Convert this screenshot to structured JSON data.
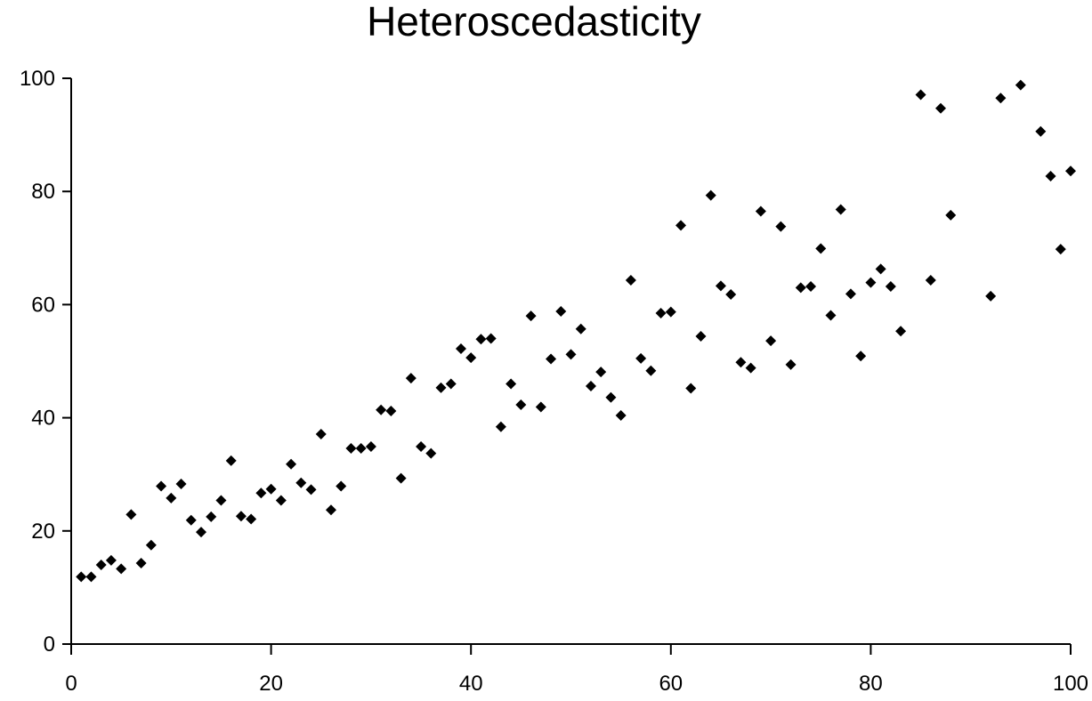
{
  "chart_data": {
    "type": "scatter",
    "title": "Heteroscedasticity",
    "xlabel": "",
    "ylabel": "",
    "xlim": [
      0,
      100
    ],
    "ylim": [
      0,
      100
    ],
    "x_ticks": [
      0,
      20,
      40,
      60,
      80,
      100
    ],
    "y_ticks": [
      0,
      20,
      40,
      60,
      80,
      100
    ],
    "x_tick_labels": [
      "0",
      "20",
      "40",
      "60",
      "80",
      "100"
    ],
    "y_tick_labels": [
      "0",
      "20",
      "40",
      "60",
      "80",
      "100"
    ],
    "grid": false,
    "legend": "none",
    "marker": "diamond",
    "colors": {
      "marker": "#000000",
      "axis": "#000000",
      "text": "#000000"
    },
    "points": [
      [
        1,
        11.9
      ],
      [
        2,
        11.9
      ],
      [
        3,
        14.0
      ],
      [
        4,
        14.8
      ],
      [
        5,
        13.3
      ],
      [
        6,
        22.9
      ],
      [
        7,
        14.3
      ],
      [
        8,
        17.5
      ],
      [
        9,
        27.9
      ],
      [
        10,
        25.8
      ],
      [
        11,
        28.3
      ],
      [
        12,
        21.9
      ],
      [
        13,
        19.8
      ],
      [
        14,
        22.5
      ],
      [
        15,
        25.4
      ],
      [
        16,
        32.4
      ],
      [
        17,
        22.6
      ],
      [
        18,
        22.1
      ],
      [
        19,
        26.7
      ],
      [
        20,
        27.4
      ],
      [
        21,
        25.4
      ],
      [
        22,
        31.8
      ],
      [
        23,
        28.5
      ],
      [
        24,
        27.3
      ],
      [
        25,
        37.1
      ],
      [
        26,
        23.7
      ],
      [
        27,
        27.9
      ],
      [
        28,
        34.6
      ],
      [
        29,
        34.6
      ],
      [
        30,
        34.9
      ],
      [
        31,
        41.4
      ],
      [
        32,
        41.2
      ],
      [
        33,
        29.3
      ],
      [
        34,
        47.0
      ],
      [
        35,
        34.9
      ],
      [
        36,
        33.7
      ],
      [
        37,
        45.3
      ],
      [
        38,
        46.0
      ],
      [
        39,
        52.2
      ],
      [
        40,
        50.6
      ],
      [
        41,
        53.9
      ],
      [
        42,
        54.0
      ],
      [
        43,
        38.4
      ],
      [
        44,
        46.0
      ],
      [
        45,
        42.3
      ],
      [
        46,
        58.0
      ],
      [
        47,
        41.9
      ],
      [
        48,
        50.4
      ],
      [
        49,
        58.8
      ],
      [
        50,
        51.2
      ],
      [
        51,
        55.7
      ],
      [
        52,
        45.6
      ],
      [
        53,
        48.1
      ],
      [
        54,
        43.6
      ],
      [
        55,
        40.4
      ],
      [
        56,
        64.3
      ],
      [
        57,
        50.5
      ],
      [
        58,
        48.3
      ],
      [
        59,
        58.5
      ],
      [
        60,
        58.7
      ],
      [
        61,
        74.0
      ],
      [
        62,
        45.2
      ],
      [
        63,
        54.4
      ],
      [
        64,
        79.3
      ],
      [
        65,
        63.3
      ],
      [
        66,
        61.8
      ],
      [
        67,
        49.8
      ],
      [
        68,
        48.8
      ],
      [
        69,
        76.5
      ],
      [
        70,
        53.6
      ],
      [
        71,
        73.8
      ],
      [
        72,
        49.4
      ],
      [
        73,
        63.0
      ],
      [
        74,
        63.2
      ],
      [
        75,
        69.9
      ],
      [
        76,
        58.1
      ],
      [
        77,
        76.8
      ],
      [
        78,
        61.9
      ],
      [
        79,
        50.9
      ],
      [
        80,
        63.9
      ],
      [
        81,
        66.3
      ],
      [
        82,
        63.2
      ],
      [
        83,
        55.3
      ],
      [
        85,
        97.1
      ],
      [
        86,
        64.3
      ],
      [
        87,
        94.7
      ],
      [
        88,
        75.8
      ],
      [
        92,
        61.5
      ],
      [
        93,
        96.5
      ],
      [
        95,
        98.8
      ],
      [
        97,
        90.6
      ],
      [
        98,
        82.7
      ],
      [
        99,
        69.8
      ],
      [
        100,
        83.6
      ]
    ]
  }
}
